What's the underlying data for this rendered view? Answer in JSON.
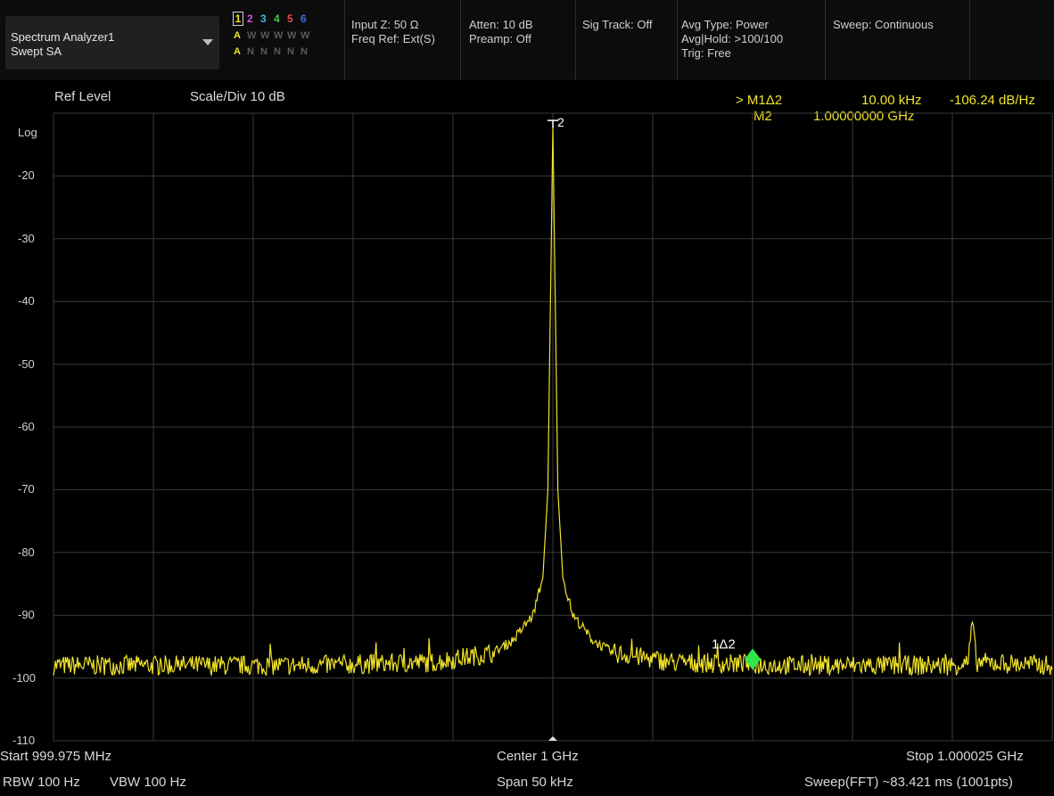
{
  "status_bar": {
    "mode_title": "Spectrum Analyzer1",
    "mode_subtitle": "Swept SA",
    "traces": {
      "numbers": [
        "1",
        "2",
        "3",
        "4",
        "5",
        "6"
      ],
      "number_colors": [
        "#f1e32a",
        "#d24fd6",
        "#3fb6d6",
        "#3fcf3f",
        "#e34a4a",
        "#4a6ae6"
      ],
      "type_row": [
        "A",
        "W",
        "W",
        "W",
        "W",
        "W"
      ],
      "detector_row": [
        "A",
        "N",
        "N",
        "N",
        "N",
        "N"
      ]
    },
    "input_z": "Input Z: 50 Ω",
    "freq_ref": "Freq Ref: Ext(S)",
    "atten": "Atten: 10 dB",
    "preamp": "Preamp: Off",
    "sig_track": "Sig Track: Off",
    "avg_type": "Avg Type: Power",
    "avg_hold": "Avg|Hold: >100/100",
    "trig": "Trig: Free",
    "sweep": "Sweep: Continuous"
  },
  "plot_header": {
    "ref_level": "Ref Level",
    "scale_div": "Scale/Div  10 dB",
    "marker_active": "> M1Δ2",
    "marker_delta_freq": "10.00 kHz",
    "marker_delta_value": "-106.24 dB/Hz",
    "marker_ref": "M2",
    "marker_ref_freq": "1.00000000 GHz"
  },
  "y_axis": {
    "scale_label": "Log",
    "ticks": [
      "-20",
      "-30",
      "-40",
      "-50",
      "-60",
      "-70",
      "-80",
      "-90",
      "-100",
      "-110"
    ]
  },
  "markers": {
    "delta_label": "1Δ2",
    "ref_label": "2"
  },
  "footer": {
    "start": "Start  999.975 MHz",
    "center": "Center  1 GHz",
    "stop": "Stop  1.000025 GHz",
    "rbw": "RBW  100 Hz",
    "vbw": "VBW  100 Hz",
    "span": "Span  50 kHz",
    "sweep_info": "Sweep(FFT)  ~83.421 ms (1001pts)"
  },
  "colors": {
    "trace": "#f1e32a",
    "marker_diamond": "#2ee84a",
    "grid": "#3a3a3a"
  },
  "chart_data": {
    "type": "line",
    "x_range_ghz": [
      0.999975,
      1.000025
    ],
    "y_range_db": [
      -110,
      -10
    ],
    "grid_divisions": {
      "x": 10,
      "y": 10
    },
    "series": [
      {
        "x_khz_offset": [
          -25,
          -12,
          -6,
          -3,
          -2,
          -1,
          -0.5,
          -0.25,
          0,
          0.25,
          0.5,
          1,
          2,
          3,
          6,
          12,
          20,
          20.8,
          21,
          21.2,
          25
        ],
        "values": [
          -98,
          -98,
          -97.5,
          -96,
          -94,
          -90,
          -84,
          -70,
          -12,
          -70,
          -84,
          -90,
          -94,
          -96,
          -97.5,
          -98,
          -98,
          -97.5,
          -91,
          -97.5,
          -98
        ]
      }
    ],
    "markers": [
      {
        "name": "2",
        "x_khz_offset": 0,
        "y": -12
      },
      {
        "name": "1Δ2",
        "x_khz_offset": 10,
        "y": -97
      }
    ]
  }
}
